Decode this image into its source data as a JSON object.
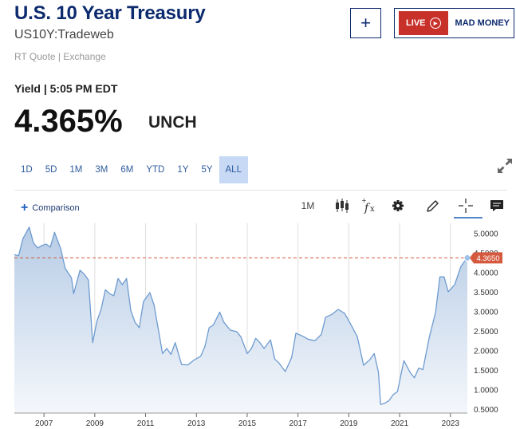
{
  "header": {
    "title": "U.S. 10 Year Treasury",
    "symbol": "US10Y:Tradeweb",
    "quote_source": "RT Quote | Exchange",
    "add_label": "+",
    "live_label": "LIVE",
    "promo_label": "MAD MONEY"
  },
  "quote": {
    "yield_time": "Yield | 5:05 PM EDT",
    "price": "4.365%",
    "change": "UNCH"
  },
  "ranges": {
    "items": [
      "1D",
      "5D",
      "1M",
      "3M",
      "6M",
      "YTD",
      "1Y",
      "5Y",
      "ALL"
    ],
    "active": "ALL"
  },
  "toolbar": {
    "comparison_label": "Comparison",
    "period_label": "1M",
    "icons": [
      "candlestick-icon",
      "function-icon",
      "gear-icon",
      "pencil-icon",
      "crosshair-icon",
      "comment-icon"
    ]
  },
  "colors": {
    "line": "#6e9bd0",
    "area_top": "#b7cce6",
    "area_bottom": "#f4f7fb",
    "current_line": "#d4593e",
    "marker": "#9ec4ec"
  },
  "chart_data": {
    "type": "area",
    "current_value_label": "4.3650",
    "x": [
      "2005-11",
      "2006-01",
      "2006-03",
      "2006-06",
      "2006-08",
      "2006-10",
      "2006-12",
      "2007-02",
      "2007-04",
      "2007-06",
      "2007-09",
      "2007-11",
      "2008-02",
      "2008-03",
      "2008-06",
      "2008-08",
      "2008-10",
      "2008-12",
      "2009-02",
      "2009-04",
      "2009-06",
      "2009-08",
      "2009-10",
      "2009-12",
      "2010-02",
      "2010-04",
      "2010-06",
      "2010-08",
      "2010-10",
      "2010-12",
      "2011-03",
      "2011-05",
      "2011-09",
      "2011-11",
      "2012-01",
      "2012-03",
      "2012-06",
      "2012-09",
      "2012-12",
      "2013-03",
      "2013-05",
      "2013-07",
      "2013-09",
      "2013-12",
      "2014-02",
      "2014-05",
      "2014-08",
      "2014-10",
      "2015-01",
      "2015-03",
      "2015-05",
      "2015-07",
      "2015-09",
      "2015-12",
      "2016-02",
      "2016-04",
      "2016-07",
      "2016-10",
      "2016-12",
      "2017-03",
      "2017-06",
      "2017-09",
      "2017-12",
      "2018-02",
      "2018-05",
      "2018-08",
      "2018-11",
      "2019-02",
      "2019-05",
      "2019-08",
      "2019-11",
      "2020-01",
      "2020-03",
      "2020-04",
      "2020-06",
      "2020-08",
      "2020-10",
      "2020-12",
      "2021-03",
      "2021-06",
      "2021-08",
      "2021-10",
      "2021-12",
      "2022-03",
      "2022-06",
      "2022-08",
      "2022-10",
      "2022-12",
      "2023-03",
      "2023-06",
      "2023-08",
      "2023-09"
    ],
    "values": [
      4.45,
      4.42,
      4.85,
      5.15,
      4.75,
      4.62,
      4.68,
      4.72,
      4.64,
      5.02,
      4.58,
      4.1,
      3.85,
      3.45,
      4.05,
      3.95,
      3.8,
      2.2,
      2.75,
      3.05,
      3.55,
      3.45,
      3.4,
      3.84,
      3.68,
      3.84,
      3.02,
      2.72,
      2.58,
      3.25,
      3.48,
      3.16,
      1.92,
      2.05,
      1.9,
      2.2,
      1.64,
      1.63,
      1.76,
      1.85,
      2.1,
      2.58,
      2.65,
      2.98,
      2.72,
      2.52,
      2.48,
      2.35,
      1.92,
      2.05,
      2.31,
      2.2,
      2.05,
      2.27,
      1.78,
      1.68,
      1.46,
      1.82,
      2.44,
      2.37,
      2.28,
      2.25,
      2.41,
      2.85,
      2.92,
      3.05,
      2.95,
      2.66,
      2.35,
      1.62,
      1.77,
      1.92,
      1.45,
      0.62,
      0.65,
      0.72,
      0.87,
      0.95,
      1.74,
      1.44,
      1.3,
      1.55,
      1.51,
      2.33,
      2.98,
      3.88,
      3.88,
      3.5,
      3.68,
      4.15,
      4.3,
      4.365
    ],
    "x_ticks": [
      "2007",
      "2009",
      "2011",
      "2013",
      "2015",
      "2017",
      "2019",
      "2021",
      "2023"
    ],
    "y_ticks": [
      "5.0000",
      "4.5000",
      "4.0000",
      "3.5000",
      "3.0000",
      "2.5000",
      "2.0000",
      "1.5000",
      "1.0000",
      "0.5000"
    ],
    "ylim": [
      0.5,
      5.0
    ],
    "grid": true
  }
}
